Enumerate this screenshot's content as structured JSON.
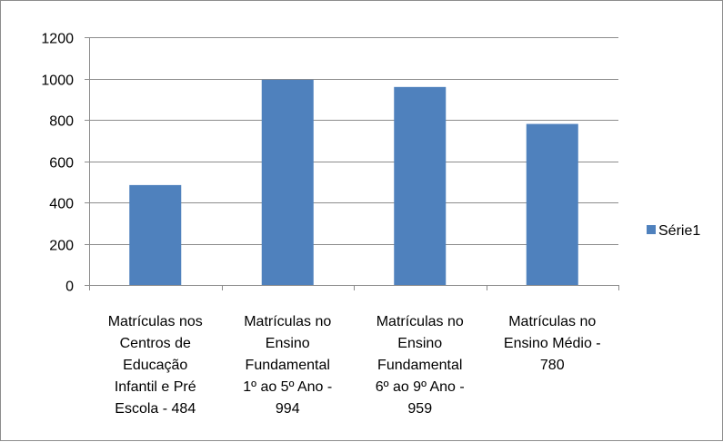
{
  "chart_data": {
    "type": "bar",
    "categories": [
      "Matrículas nos Centros de Educação Infantil e Pré Escola - 484",
      "Matrículas no Ensino Fundamental 1º ao 5º Ano - 994",
      "Matrículas no Ensino Fundamental 6º ao 9º Ano - 959",
      "Matrículas no Ensino Médio - 780"
    ],
    "category_label_lines": [
      [
        "Matrículas nos",
        "Centros de",
        "Educação",
        "Infantil e Pré",
        "Escola - 484"
      ],
      [
        "Matrículas no",
        "Ensino",
        "Fundamental",
        "1º ao 5º Ano -",
        "994"
      ],
      [
        "Matrículas no",
        "Ensino",
        "Fundamental",
        "6º ao 9º Ano -",
        "959"
      ],
      [
        "Matrículas no",
        "Ensino Médio -",
        "780"
      ]
    ],
    "series": [
      {
        "name": "Série1",
        "values": [
          484,
          994,
          959,
          780
        ],
        "color": "#4f81bd"
      }
    ],
    "ylim": [
      0,
      1200
    ],
    "yticks": [
      0,
      200,
      400,
      600,
      800,
      1000,
      1200
    ],
    "grid": true,
    "legend_position": "right",
    "title": "",
    "xlabel": "",
    "ylabel": ""
  }
}
